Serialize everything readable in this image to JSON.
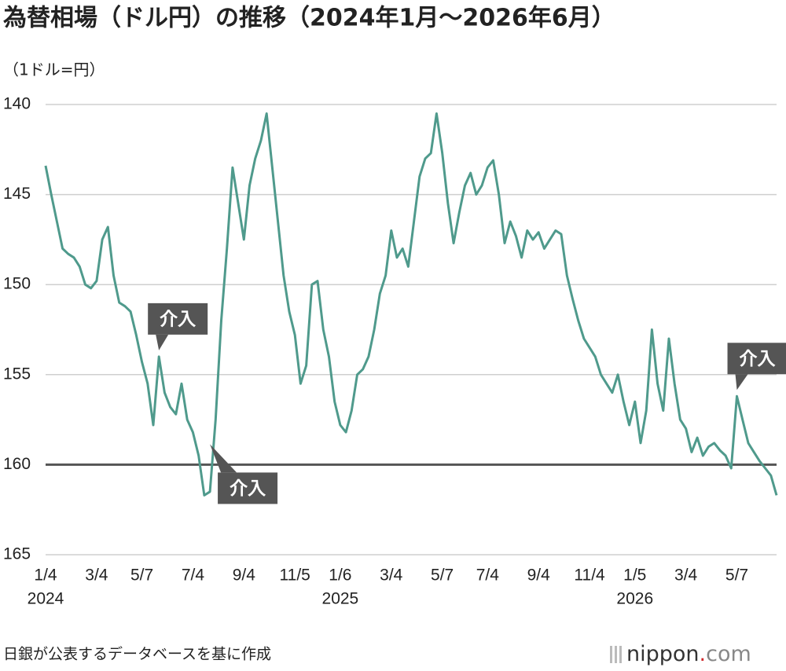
{
  "chart_data": {
    "type": "line",
    "title": "為替相場（ドル円）の推移（2024年1月〜2026年6月）",
    "unit_label": "（1ドル=円）",
    "source": "日銀が公表するデータベースを基に作成",
    "logo_parts": [
      "nippon",
      ".",
      "com"
    ],
    "color": "#4f9a8c",
    "ylim": [
      140,
      165
    ],
    "y_inverted": true,
    "yticks": [
      140,
      145,
      150,
      155,
      160,
      165
    ],
    "grid": true,
    "reference_line": 160,
    "categories": [
      "1/4",
      null,
      null,
      null,
      null,
      null,
      null,
      null,
      null,
      "3/4",
      null,
      null,
      null,
      null,
      null,
      null,
      null,
      "5/7",
      null,
      null,
      null,
      null,
      null,
      null,
      null,
      null,
      "7/4",
      null,
      null,
      null,
      null,
      null,
      null,
      null,
      null,
      "9/4",
      null,
      null,
      null,
      null,
      null,
      null,
      null,
      null,
      "11/5",
      null,
      null,
      null,
      null,
      null,
      null,
      null,
      "1/6",
      null,
      null,
      null,
      null,
      null,
      null,
      null,
      null,
      "3/4",
      null,
      null,
      null,
      null,
      null,
      null,
      null,
      null,
      "5/7",
      null,
      null,
      null,
      null,
      null,
      null,
      null,
      "7/4",
      null,
      null,
      null,
      null,
      null,
      null,
      null,
      null,
      "9/4",
      null,
      null,
      null,
      null,
      null,
      null,
      null,
      null,
      "11/4",
      null,
      null,
      null,
      null,
      null,
      null,
      null,
      "1/5",
      null,
      null,
      null,
      null,
      null,
      null,
      null,
      null,
      "3/4",
      null,
      null,
      null,
      null,
      null,
      null,
      null,
      null,
      "5/7",
      null,
      null,
      null,
      null,
      null,
      null,
      null
    ],
    "years": [
      {
        "label": "2024",
        "at": 0
      },
      {
        "label": "2025",
        "at": 52
      },
      {
        "label": "2026",
        "at": 104
      }
    ],
    "values": [
      143.4,
      145,
      146.5,
      148,
      148.3,
      148.5,
      149,
      150,
      150.2,
      149.8,
      147.5,
      146.8,
      149.5,
      151,
      151.2,
      151.5,
      152.8,
      154.3,
      155.5,
      157.8,
      154,
      156,
      156.8,
      157.2,
      155.5,
      157.5,
      158.2,
      159.5,
      161.7,
      161.5,
      157.5,
      152,
      148,
      143.5,
      145.5,
      147.5,
      144.5,
      143,
      142,
      140.5,
      143.5,
      146.5,
      149.5,
      151.5,
      152.8,
      155.5,
      154.5,
      150,
      149.8,
      152.5,
      154,
      156.5,
      157.8,
      158.2,
      157,
      155,
      154.7,
      154,
      152.5,
      150.5,
      149.5,
      147,
      148.5,
      148,
      149,
      146.5,
      144,
      143,
      142.7,
      140.5,
      142.7,
      145.5,
      147.7,
      146,
      144.5,
      143.8,
      145,
      144.5,
      143.5,
      143.1,
      145,
      147.7,
      146.5,
      147.3,
      148.5,
      147,
      147.5,
      147.1,
      148,
      147.5,
      147,
      147.2,
      149.5,
      150.8,
      152,
      153,
      153.5,
      154,
      155,
      155.5,
      156,
      155,
      156.5,
      157.8,
      156.5,
      158.8,
      157,
      152.5,
      155.5,
      157,
      153,
      155.5,
      157.5,
      158,
      159.3,
      158.5,
      159.5,
      159,
      158.8,
      159.2,
      159.5,
      160.2,
      156.2,
      157.5,
      158.8,
      159.3,
      159.8,
      160.2,
      160.6,
      161.7
    ],
    "annotations": [
      {
        "label": "介入",
        "at": 20
      },
      {
        "label": "介入",
        "at": 29
      },
      {
        "label": "介入",
        "at": 122
      }
    ]
  }
}
